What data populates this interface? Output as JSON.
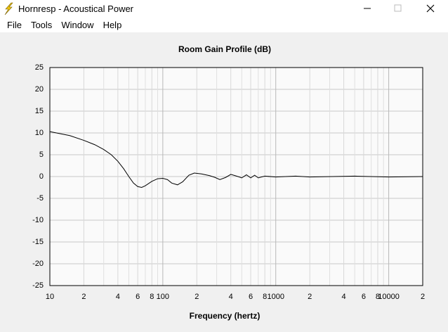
{
  "window": {
    "title": "Hornresp - Acoustical Power",
    "menu": [
      "File",
      "Tools",
      "Window",
      "Help"
    ]
  },
  "chart_data": {
    "type": "line",
    "title": "Room Gain Profile (dB)",
    "x_label": "Frequency (hertz)",
    "x_scale": "log",
    "grid": true,
    "color": "#000000",
    "x": [
      10,
      15,
      20,
      25,
      30,
      35,
      40,
      45,
      50,
      55,
      60,
      65,
      70,
      80,
      90,
      100,
      110,
      120,
      135,
      150,
      170,
      190,
      220,
      260,
      290,
      320,
      360,
      400,
      450,
      500,
      550,
      600,
      650,
      700,
      800,
      1000,
      1500,
      2000,
      5000,
      10000,
      20000
    ],
    "values": [
      10.3,
      9.4,
      8.3,
      7.3,
      6.2,
      5.0,
      3.5,
      1.8,
      0,
      -1.5,
      -2.3,
      -2.5,
      -2.1,
      -1.1,
      -0.5,
      -0.4,
      -0.7,
      -1.5,
      -1.9,
      -1.2,
      0.3,
      0.8,
      0.6,
      0.2,
      -0.2,
      -0.7,
      -0.2,
      0.5,
      0.1,
      -0.3,
      0.4,
      -0.3,
      0.3,
      -0.3,
      0.1,
      -0.1,
      0.1,
      -0.1,
      0.1,
      -0.1,
      0
    ],
    "xlim": [
      10,
      20000
    ],
    "xticks": [
      10,
      {
        "value": 20,
        "label": "2"
      },
      {
        "value": 40,
        "label": "4"
      },
      {
        "value": 60,
        "label": "6"
      },
      {
        "value": 80,
        "label": "8"
      },
      100,
      {
        "value": 200,
        "label": "2"
      },
      {
        "value": 400,
        "label": "4"
      },
      {
        "value": 600,
        "label": "6"
      },
      {
        "value": 800,
        "label": "8"
      },
      1000,
      {
        "value": 2000,
        "label": "2"
      },
      {
        "value": 4000,
        "label": "4"
      },
      {
        "value": 6000,
        "label": "6"
      },
      {
        "value": 8000,
        "label": "8"
      },
      10000,
      {
        "value": 20000,
        "label": "2"
      }
    ],
    "minor_xticks": [
      30,
      50,
      70,
      90,
      300,
      500,
      700,
      900,
      3000,
      5000,
      7000,
      9000
    ],
    "ylim": [
      -25,
      25
    ],
    "yticks": [
      -25,
      -20,
      -15,
      -10,
      -5,
      0,
      5,
      10,
      15,
      20,
      25
    ]
  }
}
